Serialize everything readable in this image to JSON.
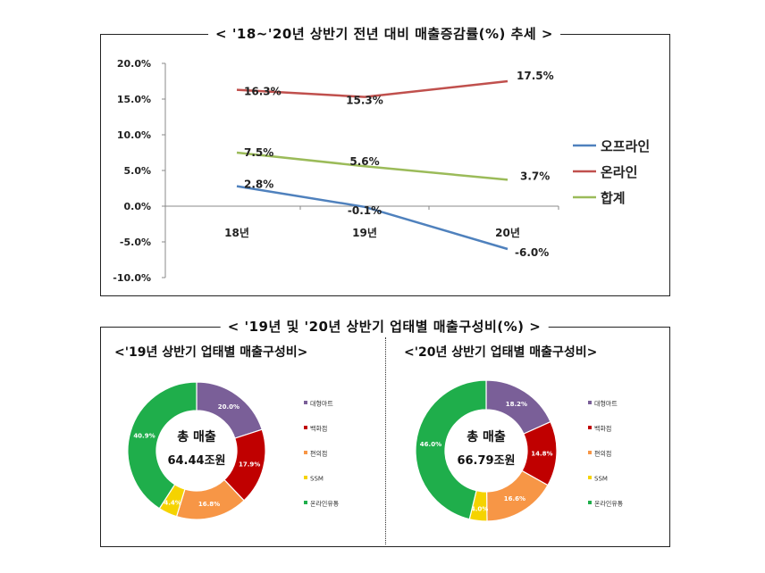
{
  "titles": {
    "top": "< '18~'20년 상반기 전년 대비 매출증감률(%) 추세 >",
    "bottom": "< '19년 및 '20년 상반기 업태별 매출구성비(%) >"
  },
  "chart_data": [
    {
      "type": "line",
      "categories": [
        "18년",
        "19년",
        "20년"
      ],
      "ylim": [
        -10,
        20
      ],
      "yticks": [
        "20.0%",
        "15.0%",
        "10.0%",
        "5.0%",
        "0.0%",
        "-5.0%",
        "-10.0%"
      ],
      "series": [
        {
          "name": "오프라인",
          "values": [
            2.8,
            -0.1,
            -6.0
          ],
          "labels": [
            "2.8%",
            "-0.1%",
            "-6.0%"
          ],
          "color": "#4f81bd"
        },
        {
          "name": "온라인",
          "values": [
            16.3,
            15.3,
            17.5
          ],
          "labels": [
            "16.3%",
            "15.3%",
            "17.5%"
          ],
          "color": "#c0504d"
        },
        {
          "name": "합계",
          "values": [
            7.5,
            5.6,
            3.7
          ],
          "labels": [
            "7.5%",
            "5.6%",
            "3.7%"
          ],
          "color": "#9bbb59"
        }
      ],
      "legend": "right"
    },
    {
      "type": "pie",
      "title": "<'19년 상반기 업태별 매출구성비>",
      "center_label": [
        "총 매출",
        "64.44조원"
      ],
      "slices": [
        {
          "name": "대형마트",
          "value": 20.0,
          "label": "20.0%",
          "color": "#7a5f98"
        },
        {
          "name": "백화점",
          "value": 17.9,
          "label": "17.9%",
          "color": "#c00000"
        },
        {
          "name": "편의점",
          "value": 16.8,
          "label": "16.8%",
          "color": "#f79646"
        },
        {
          "name": "SSM",
          "value": 4.4,
          "label": "4.4%",
          "color": "#f5d300"
        },
        {
          "name": "온라인유통",
          "value": 40.9,
          "label": "40.9%",
          "color": "#1fae4b"
        }
      ]
    },
    {
      "type": "pie",
      "title": "<'20년 상반기 업태별 매출구성비>",
      "center_label": [
        "총 매출",
        "66.79조원"
      ],
      "slices": [
        {
          "name": "대형마트",
          "value": 18.2,
          "label": "18.2%",
          "color": "#7a5f98"
        },
        {
          "name": "백화점",
          "value": 14.8,
          "label": "14.8%",
          "color": "#c00000"
        },
        {
          "name": "편의점",
          "value": 16.6,
          "label": "16.6%",
          "color": "#f79646"
        },
        {
          "name": "SSM",
          "value": 4.0,
          "label": "4.0%",
          "color": "#f5d300"
        },
        {
          "name": "온라인유통",
          "value": 46.0,
          "label": "46.0%",
          "color": "#1fae4b"
        }
      ]
    }
  ]
}
